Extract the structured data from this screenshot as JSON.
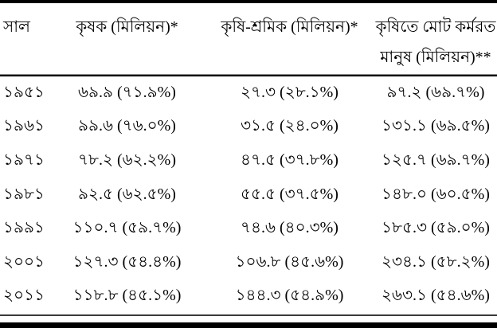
{
  "colors": {
    "background": "#ffffff",
    "text": "#000000",
    "thick_rule": "#000000",
    "thin_rule": "#8a8a8a"
  },
  "table": {
    "columns": [
      {
        "label": "সাল",
        "label2": ""
      },
      {
        "label": "কৃষক (মিলিয়ন)*",
        "label2": ""
      },
      {
        "label": "কৃষি-শ্রমিক (মিলিয়ন)*",
        "label2": ""
      },
      {
        "label": "কৃষিতে মোট কর্মরত",
        "label2": "মানুষ (মিলিয়ন)**"
      }
    ],
    "rows": [
      [
        "১৯৫১",
        "৬৯.৯ (৭১.৯%)",
        "২৭.৩ (২৮.১%)",
        "৯৭.২ (৬৯.৭%)"
      ],
      [
        "১৯৬১",
        "৯৯.৬ (৭৬.০%)",
        "৩১.৫ (২৪.০%)",
        "১৩১.১ (৬৯.৫%)"
      ],
      [
        "১৯৭১",
        "৭৮.২ (৬২.২%)",
        "৪৭.৫ (৩৭.৮%)",
        "১২৫.৭ (৬৯.৭%)"
      ],
      [
        "১৯৮১",
        "৯২.৫ (৬২.৫%)",
        "৫৫.৫ (৩৭.৫%)",
        "১৪৮.০ (৬০.৫%)"
      ],
      [
        "১৯৯১",
        "১১০.৭ (৫৯.৭%)",
        "৭৪.৬ (৪০.৩%)",
        "১৮৫.৩ (৫৯.০%)"
      ],
      [
        "২০০১",
        "১২৭.৩ (৫৪.৪%)",
        "১০৬.৮ (৪৫.৬%)",
        "২৩৪.১ (৫৮.২%)"
      ],
      [
        "২০১১",
        "১১৮.৮ (৪৫.১%)",
        "১৪৪.৩ (৫৪.৯%)",
        "২৬৩.১ (৫৪.৬%)"
      ]
    ]
  }
}
